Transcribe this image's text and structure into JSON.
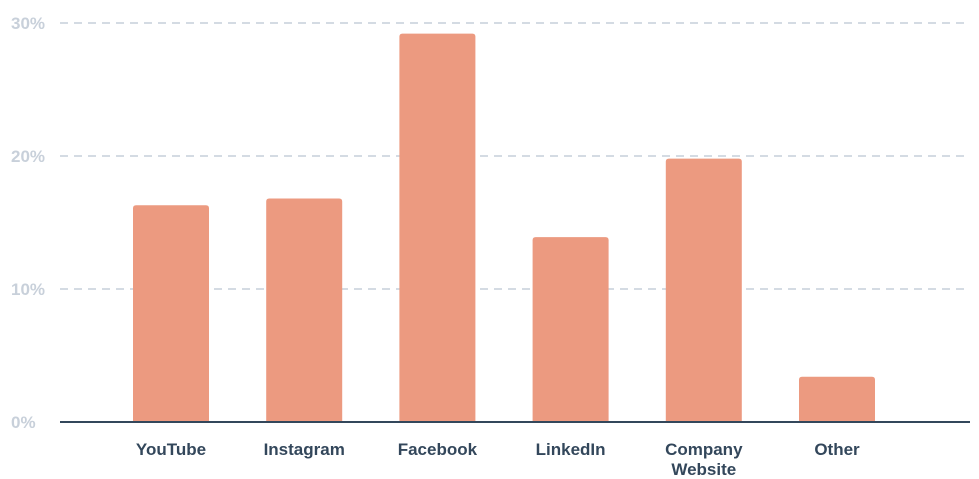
{
  "chart_data": {
    "type": "bar",
    "categories": [
      [
        "YouTube"
      ],
      [
        "Instagram"
      ],
      [
        "Facebook"
      ],
      [
        "LinkedIn"
      ],
      [
        "Company",
        "Website"
      ],
      [
        "Other"
      ]
    ],
    "values": [
      16.3,
      16.8,
      29.2,
      13.9,
      19.8,
      3.4
    ],
    "y_ticks": [
      "0%",
      "10%",
      "20%",
      "30%"
    ],
    "ylim": [
      0,
      30
    ],
    "grid": true,
    "title": "",
    "xlabel": "",
    "ylabel": ""
  },
  "colors": {
    "bar": "#EC9A80",
    "grid": "#C5CFDA",
    "ytick_text": "#C8D0DA",
    "xtick_text": "#33475B",
    "axis": "#33475B"
  }
}
